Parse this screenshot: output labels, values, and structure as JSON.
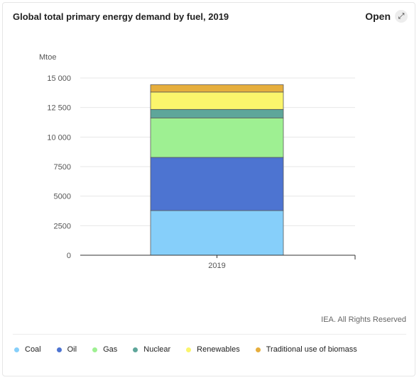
{
  "header": {
    "title": "Global total primary energy demand by fuel, 2019",
    "open_label": "Open",
    "open_icon": "expand-arrows-icon"
  },
  "credit": "IEA. All Rights Reserved",
  "colors": {
    "Coal": "#86cffa",
    "Oil": "#4d74d1",
    "Gas": "#9ef092",
    "Nuclear": "#5ea69a",
    "Renewables": "#fbf56c",
    "Traditional use of biomass": "#e6ae3d"
  },
  "chart_data": {
    "type": "bar",
    "stacked": true,
    "title": "Global total primary energy demand by fuel, 2019",
    "ylabel": "Mtoe",
    "xlabel": "",
    "categories": [
      "2019"
    ],
    "ylim": [
      0,
      15000
    ],
    "yticks": [
      0,
      2500,
      5000,
      7500,
      10000,
      12500,
      15000
    ],
    "ytick_labels": [
      "0",
      "2500",
      "5000",
      "7500",
      "10 000",
      "12 500",
      "15 000"
    ],
    "grid": true,
    "legend_position": "bottom",
    "series": [
      {
        "name": "Coal",
        "values": [
          3780
        ]
      },
      {
        "name": "Oil",
        "values": [
          4500
        ]
      },
      {
        "name": "Gas",
        "values": [
          3340
        ]
      },
      {
        "name": "Nuclear",
        "values": [
          720
        ]
      },
      {
        "name": "Renewables",
        "values": [
          1470
        ]
      },
      {
        "name": "Traditional use of biomass",
        "values": [
          620
        ]
      }
    ]
  }
}
